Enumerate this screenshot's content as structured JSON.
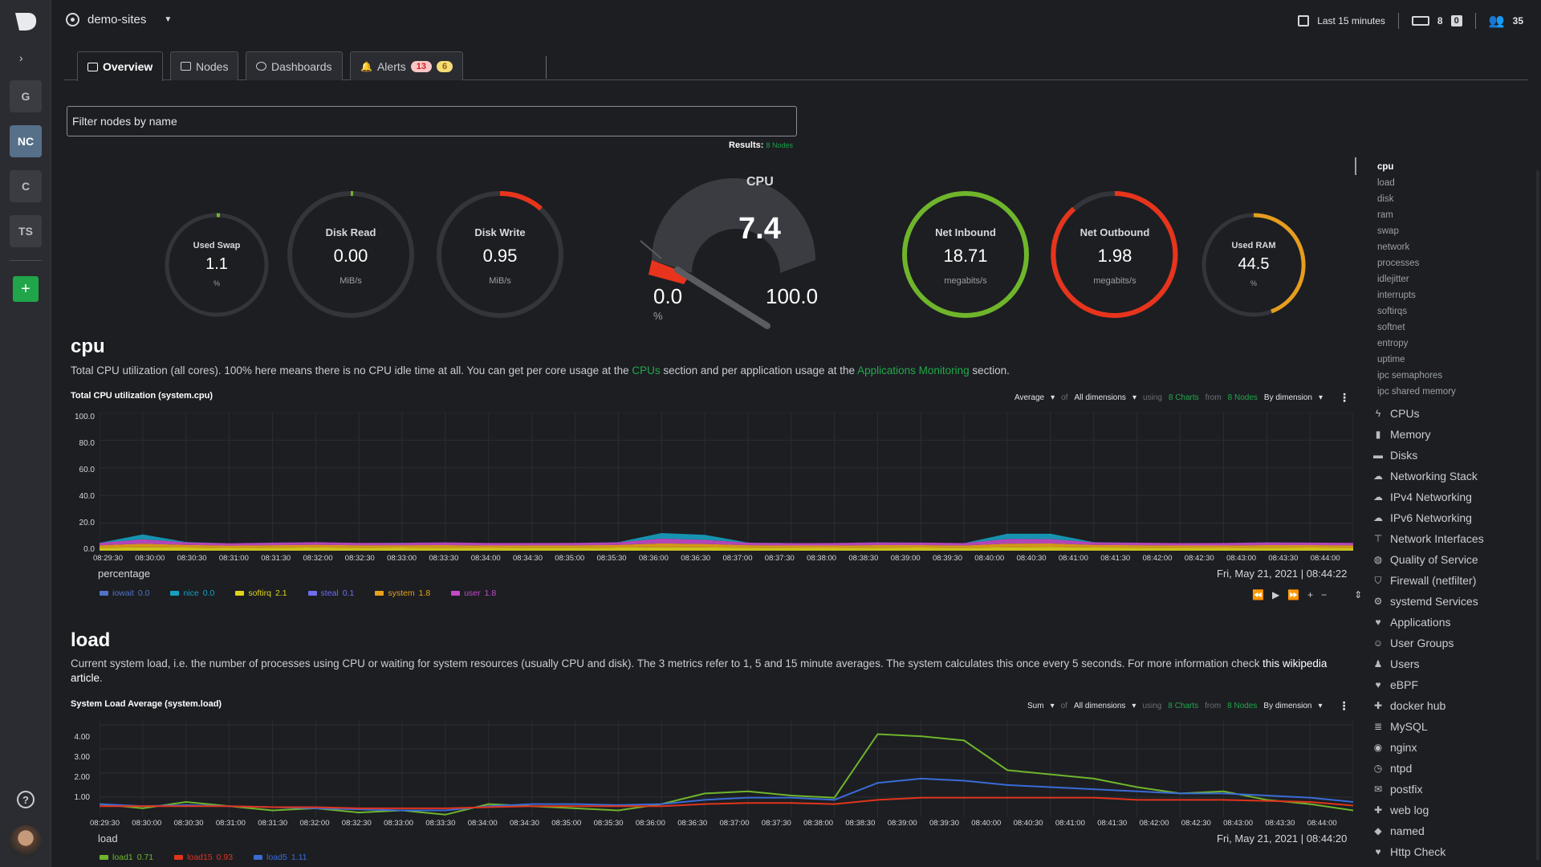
{
  "spaces": [
    "G",
    "NC",
    "C",
    "TS"
  ],
  "space_add": "+",
  "help": "?",
  "room": {
    "name": "demo-sites"
  },
  "topright": {
    "timeframe": "Last 15 minutes",
    "nodes": "8",
    "errors": "0",
    "users": "35"
  },
  "tabs": [
    {
      "label": "Overview",
      "icon": "overview-icon"
    },
    {
      "label": "Nodes",
      "icon": "nodes-icon"
    },
    {
      "label": "Dashboards",
      "icon": "dashboards-icon"
    },
    {
      "label": "Alerts",
      "icon": "bell-icon",
      "critical": "13",
      "warning": "6"
    }
  ],
  "filter": {
    "placeholder": "Filter nodes by name"
  },
  "results": {
    "label": "Results:",
    "value": "8 Nodes"
  },
  "gauges": {
    "used_swap": {
      "title": "Used Swap",
      "value": "1.1",
      "unit": "%",
      "fraction": 0.011
    },
    "disk_read": {
      "title": "Disk Read",
      "value": "0.00",
      "unit": "MiB/s",
      "fraction": 0.0
    },
    "disk_write": {
      "title": "Disk Write",
      "value": "0.95",
      "unit": "MiB/s",
      "fraction": 0.12
    },
    "cpu": {
      "title": "CPU",
      "value": "7.4",
      "min": "0.0",
      "max": "100.0",
      "unit": "%",
      "fraction": 0.074
    },
    "net_inbound": {
      "title": "Net Inbound",
      "value": "18.71",
      "unit": "megabits/s",
      "fraction": 1.0
    },
    "net_outbound": {
      "title": "Net Outbound",
      "value": "1.98",
      "unit": "megabits/s",
      "fraction": 0.85
    },
    "used_ram": {
      "title": "Used RAM",
      "value": "44.5",
      "unit": "%",
      "fraction": 0.445
    }
  },
  "colors": {
    "green": "#22a84a",
    "red": "#e8341c",
    "orange": "#e69d1e"
  },
  "cpu_section": {
    "title": "cpu",
    "desc_1": "Total CPU utilization (all cores). 100% here means there is no CPU idle time at all. You can get per core usage at the ",
    "link_1": "CPUs",
    "desc_2": " section and per application usage at the ",
    "link_2": "Applications Monitoring",
    "desc_3": " section.",
    "chart_title": "Total CPU utilization (system.cpu)",
    "opts": {
      "agg": "Average",
      "of": "of",
      "dims": "All dimensions",
      "using": "using",
      "charts": "8 Charts",
      "from": "from",
      "nodes": "8 Nodes",
      "group": "By dimension"
    },
    "unit": "percentage",
    "timestamp": "Fri, May 21, 2021 | 08:44:22",
    "legend": [
      {
        "name": "iowait",
        "value": "0.0",
        "color": "#5372c9"
      },
      {
        "name": "nice",
        "value": "0.0",
        "color": "#16a0c0"
      },
      {
        "name": "softirq",
        "value": "2.1",
        "color": "#e0d41a"
      },
      {
        "name": "steal",
        "value": "0.1",
        "color": "#6e6ef0"
      },
      {
        "name": "system",
        "value": "1.8",
        "color": "#e8a21b"
      },
      {
        "name": "user",
        "value": "1.8",
        "color": "#c449c9"
      }
    ]
  },
  "load_section": {
    "title": "load",
    "desc_1": "Current system load, i.e. the number of processes using CPU or waiting for system resources (usually CPU and disk). The 3 metrics refer to 1, 5 and 15 minute averages. The system calculates this once every 5 seconds. For more information check ",
    "link_1": "this wikipedia article",
    "desc_2": ".",
    "chart_title": "System Load Average (system.load)",
    "opts": {
      "agg": "Sum",
      "of": "of",
      "dims": "All dimensions",
      "using": "using",
      "charts": "8 Charts",
      "from": "from",
      "nodes": "8 Nodes",
      "group": "By dimension"
    },
    "unit": "load",
    "timestamp": "Fri, May 21, 2021 | 08:44:20",
    "legend": [
      {
        "name": "load1",
        "value": "0.71",
        "color": "#6fb52c"
      },
      {
        "name": "load15",
        "value": "0.93",
        "color": "#e0341c"
      },
      {
        "name": "load5",
        "value": "1.11",
        "color": "#3a6bd6"
      }
    ]
  },
  "chart_data": [
    {
      "type": "area",
      "title": "Total CPU utilization (system.cpu)",
      "ylabel": "percentage",
      "ylim": [
        0,
        100
      ],
      "yticks": [
        "100.0",
        "80.0",
        "60.0",
        "40.0",
        "20.0",
        "0.0"
      ],
      "xticks": [
        "08:29:30",
        "08:30:00",
        "08:30:30",
        "08:31:00",
        "08:31:30",
        "08:32:00",
        "08:32:30",
        "08:33:00",
        "08:33:30",
        "08:34:00",
        "08:34:30",
        "08:35:00",
        "08:35:30",
        "08:36:00",
        "08:36:30",
        "08:37:00",
        "08:37:30",
        "08:38:00",
        "08:38:30",
        "08:39:00",
        "08:39:30",
        "08:40:00",
        "08:40:30",
        "08:41:00",
        "08:41:30",
        "08:42:00",
        "08:42:30",
        "08:43:00",
        "08:43:30",
        "08:44:00"
      ],
      "series": [
        {
          "name": "softirq",
          "values": [
            2.1,
            2.5,
            2.3,
            2.0,
            2.2,
            2.4,
            2.1,
            2.3,
            2.2,
            2.0,
            2.2,
            2.1,
            2.3,
            2.5,
            2.4,
            2.2,
            2.1,
            2.0,
            2.2,
            2.3,
            2.1,
            2.4,
            2.6,
            2.3,
            2.2,
            2.1,
            2.0,
            2.2,
            2.3,
            2.1
          ]
        },
        {
          "name": "system",
          "values": [
            1.8,
            2.6,
            1.9,
            1.7,
            1.8,
            1.9,
            1.8,
            1.7,
            1.9,
            1.8,
            1.7,
            1.8,
            1.9,
            2.8,
            2.5,
            1.8,
            1.7,
            1.8,
            1.9,
            1.8,
            1.7,
            2.7,
            2.6,
            1.9,
            1.8,
            1.7,
            1.8,
            1.9,
            1.8,
            1.8
          ]
        },
        {
          "name": "user",
          "values": [
            1.8,
            3.2,
            1.9,
            1.7,
            1.8,
            1.9,
            1.8,
            1.7,
            1.9,
            1.8,
            1.7,
            1.8,
            1.9,
            3.5,
            3.0,
            1.8,
            1.7,
            1.8,
            1.9,
            1.8,
            1.7,
            3.4,
            3.2,
            1.9,
            1.8,
            1.7,
            1.8,
            1.9,
            1.8,
            1.8
          ]
        },
        {
          "name": "nice",
          "values": [
            0.0,
            3.5,
            0.2,
            0.0,
            0.1,
            0.0,
            0.0,
            0.1,
            0.0,
            0.0,
            0.0,
            0.0,
            0.1,
            4.0,
            3.6,
            0.1,
            0.0,
            0.0,
            0.1,
            0.0,
            0.0,
            3.8,
            3.9,
            0.1,
            0.0,
            0.0,
            0.0,
            0.1,
            0.0,
            0.0
          ]
        }
      ]
    },
    {
      "type": "line",
      "title": "System Load Average (system.load)",
      "ylabel": "load",
      "ylim": [
        0,
        5
      ],
      "yticks": [
        "4.00",
        "3.00",
        "2.00",
        "1.00"
      ],
      "xticks": [
        "08:29:30",
        "08:30:00",
        "08:30:30",
        "08:31:00",
        "08:31:30",
        "08:32:00",
        "08:32:30",
        "08:33:00",
        "08:33:30",
        "08:34:00",
        "08:34:30",
        "08:35:00",
        "08:35:30",
        "08:36:00",
        "08:36:30",
        "08:37:00",
        "08:37:30",
        "08:38:00",
        "08:38:30",
        "08:39:00",
        "08:39:30",
        "08:40:00",
        "08:40:30",
        "08:41:00",
        "08:41:30",
        "08:42:00",
        "08:42:30",
        "08:43:00",
        "08:43:30",
        "08:44:00"
      ],
      "series": [
        {
          "name": "load1",
          "values": [
            1.0,
            0.8,
            1.1,
            0.9,
            0.7,
            0.8,
            0.6,
            0.7,
            0.5,
            1.0,
            0.9,
            0.8,
            0.7,
            1.0,
            1.5,
            1.6,
            1.4,
            1.3,
            4.3,
            4.2,
            4.0,
            2.6,
            2.4,
            2.2,
            1.8,
            1.5,
            1.6,
            1.2,
            1.0,
            0.7
          ]
        },
        {
          "name": "load5",
          "values": [
            1.0,
            0.9,
            0.95,
            0.9,
            0.85,
            0.8,
            0.75,
            0.7,
            0.7,
            0.9,
            1.0,
            1.0,
            0.95,
            1.0,
            1.2,
            1.3,
            1.3,
            1.2,
            2.0,
            2.2,
            2.1,
            1.9,
            1.8,
            1.7,
            1.6,
            1.5,
            1.5,
            1.4,
            1.3,
            1.1
          ]
        },
        {
          "name": "load15",
          "values": [
            0.9,
            0.9,
            0.9,
            0.9,
            0.85,
            0.85,
            0.8,
            0.8,
            0.8,
            0.85,
            0.9,
            0.9,
            0.9,
            0.9,
            1.0,
            1.05,
            1.05,
            1.0,
            1.2,
            1.3,
            1.3,
            1.3,
            1.3,
            1.3,
            1.2,
            1.2,
            1.2,
            1.15,
            1.1,
            0.93
          ]
        }
      ]
    }
  ],
  "rnav": {
    "subs": [
      "cpu",
      "load",
      "disk",
      "ram",
      "swap",
      "network",
      "processes",
      "idlejitter",
      "interrupts",
      "softirqs",
      "softnet",
      "entropy",
      "uptime",
      "ipc semaphores",
      "ipc shared memory"
    ],
    "mains": [
      {
        "label": "CPUs",
        "icon": "bolt-icon"
      },
      {
        "label": "Memory",
        "icon": "memory-icon"
      },
      {
        "label": "Disks",
        "icon": "disk-icon"
      },
      {
        "label": "Networking Stack",
        "icon": "cloud-icon"
      },
      {
        "label": "IPv4 Networking",
        "icon": "cloud-icon"
      },
      {
        "label": "IPv6 Networking",
        "icon": "cloud-icon"
      },
      {
        "label": "Network Interfaces",
        "icon": "sitemap-icon"
      },
      {
        "label": "Quality of Service",
        "icon": "globe-icon"
      },
      {
        "label": "Firewall (netfilter)",
        "icon": "shield-icon"
      },
      {
        "label": "systemd Services",
        "icon": "cogs-icon"
      },
      {
        "label": "Applications",
        "icon": "heart-icon"
      },
      {
        "label": "User Groups",
        "icon": "users-icon"
      },
      {
        "label": "Users",
        "icon": "user-icon"
      },
      {
        "label": "eBPF",
        "icon": "heart-icon"
      },
      {
        "label": "docker hub",
        "icon": "puzzle-icon"
      },
      {
        "label": "MySQL",
        "icon": "database-icon"
      },
      {
        "label": "nginx",
        "icon": "eye-icon"
      },
      {
        "label": "ntpd",
        "icon": "clock-icon"
      },
      {
        "label": "postfix",
        "icon": "envelope-icon"
      },
      {
        "label": "web log",
        "icon": "puzzle-icon"
      },
      {
        "label": "named",
        "icon": "tag-icon"
      },
      {
        "label": "Http Check",
        "icon": "heart-icon"
      }
    ]
  }
}
